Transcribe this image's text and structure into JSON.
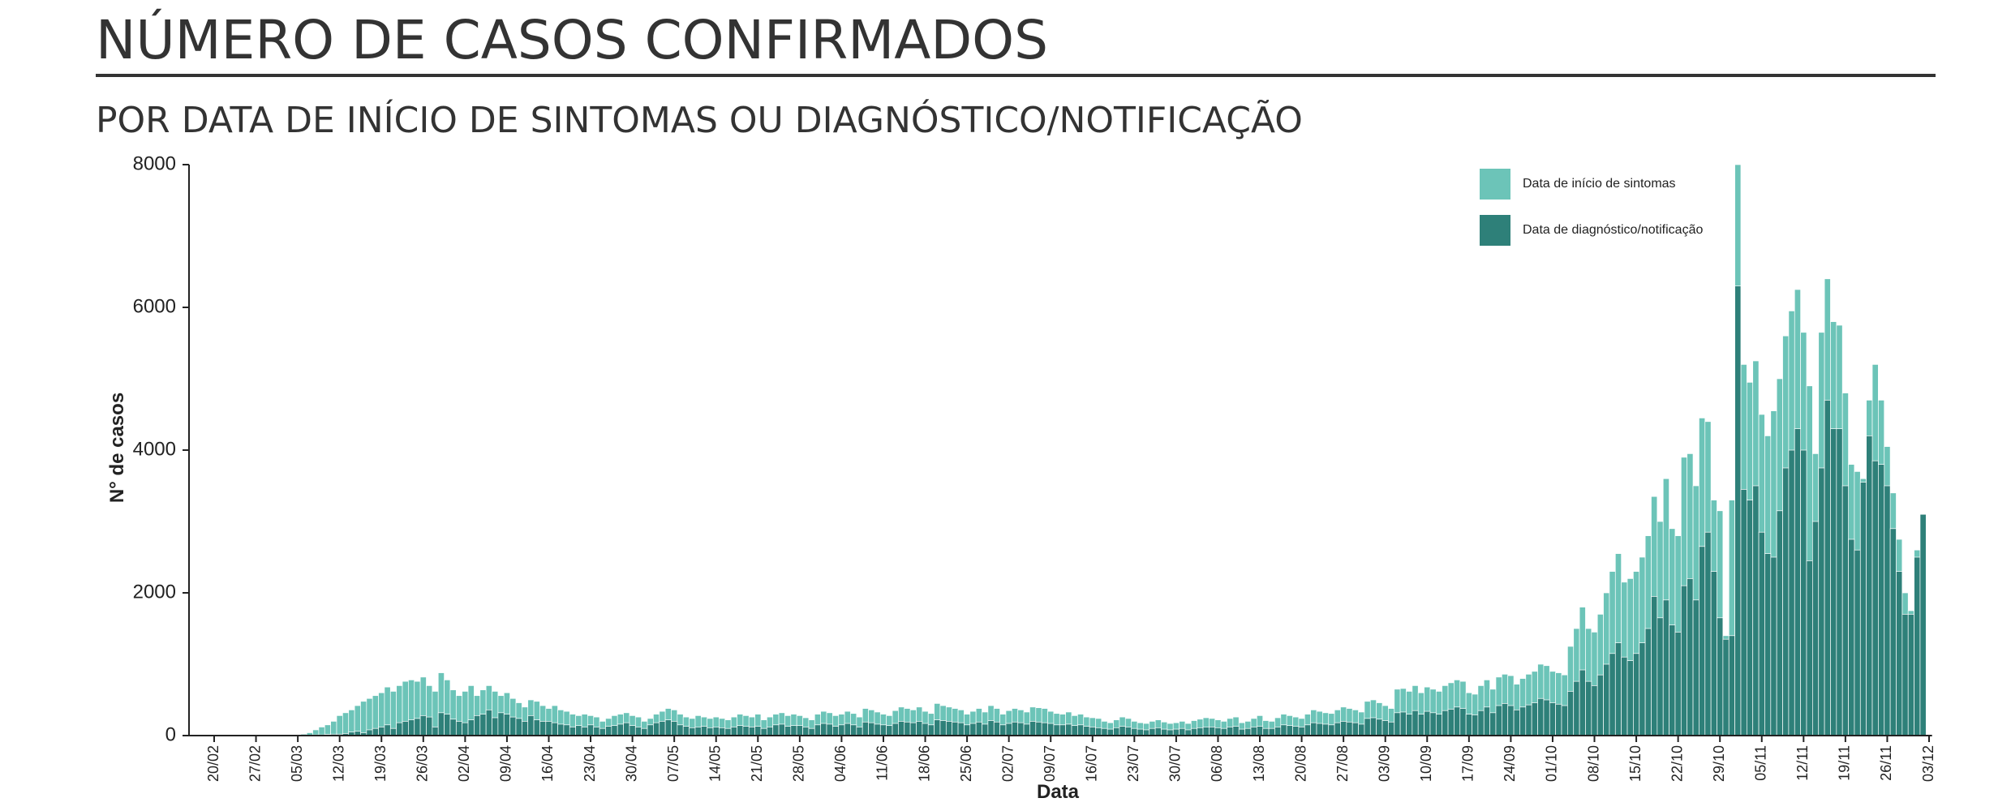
{
  "chart_data": {
    "type": "bar",
    "overlay": true,
    "title": "NÚMERO DE CASOS CONFIRMADOS",
    "subtitle": "POR DATA DE INÍCIO DE SINTOMAS OU DIAGNÓSTICO/NOTIFICAÇÃO",
    "x_label": "Data",
    "y_label": "N° de casos",
    "ylim": [
      0,
      8000
    ],
    "yticks": [
      0,
      2000,
      4000,
      6000,
      8000
    ],
    "grid": false,
    "legend": "top-right",
    "categories": [
      "20/02",
      null,
      null,
      null,
      null,
      null,
      null,
      "27/02",
      null,
      null,
      null,
      null,
      null,
      null,
      "05/03",
      null,
      null,
      null,
      null,
      null,
      null,
      "12/03",
      null,
      null,
      null,
      null,
      null,
      null,
      "19/03",
      null,
      null,
      null,
      null,
      null,
      null,
      "26/03",
      null,
      null,
      null,
      null,
      null,
      null,
      "02/04",
      null,
      null,
      null,
      null,
      null,
      null,
      "09/04",
      null,
      null,
      null,
      null,
      null,
      null,
      "16/04",
      null,
      null,
      null,
      null,
      null,
      null,
      "23/04",
      null,
      null,
      null,
      null,
      null,
      null,
      "30/04",
      null,
      null,
      null,
      null,
      null,
      null,
      "07/05",
      null,
      null,
      null,
      null,
      null,
      null,
      "14/05",
      null,
      null,
      null,
      null,
      null,
      null,
      "21/05",
      null,
      null,
      null,
      null,
      null,
      null,
      "28/05",
      null,
      null,
      null,
      null,
      null,
      null,
      "04/06",
      null,
      null,
      null,
      null,
      null,
      null,
      "11/06",
      null,
      null,
      null,
      null,
      null,
      null,
      "18/06",
      null,
      null,
      null,
      null,
      null,
      null,
      "25/06",
      null,
      null,
      null,
      null,
      null,
      null,
      "02/07",
      null,
      null,
      null,
      null,
      null,
      null,
      "09/07",
      null,
      null,
      null,
      null,
      null,
      null,
      "16/07",
      null,
      null,
      null,
      null,
      null,
      null,
      "23/07",
      null,
      null,
      null,
      null,
      null,
      null,
      "30/07",
      null,
      null,
      null,
      null,
      null,
      null,
      "06/08",
      null,
      null,
      null,
      null,
      null,
      null,
      "13/08",
      null,
      null,
      null,
      null,
      null,
      null,
      "20/08",
      null,
      null,
      null,
      null,
      null,
      null,
      "27/08",
      null,
      null,
      null,
      null,
      null,
      null,
      "03/09",
      null,
      null,
      null,
      null,
      null,
      null,
      "10/09",
      null,
      null,
      null,
      null,
      null,
      null,
      "17/09",
      null,
      null,
      null,
      null,
      null,
      null,
      "24/09",
      null,
      null,
      null,
      null,
      null,
      null,
      "01/10",
      null,
      null,
      null,
      null,
      null,
      null,
      "08/10",
      null,
      null,
      null,
      null,
      null,
      null,
      "15/10",
      null,
      null,
      null,
      null,
      null,
      null,
      "22/10",
      null,
      null,
      null,
      null,
      null,
      null,
      "29/10",
      null,
      null,
      null,
      null,
      null,
      null,
      "05/11",
      null,
      null,
      null,
      null,
      null,
      null,
      "12/11",
      null,
      null,
      null,
      null,
      null,
      null,
      "19/11",
      null,
      null,
      null,
      null,
      null,
      null,
      "26/11",
      null,
      null,
      null,
      null,
      null,
      null,
      "03/12"
    ],
    "series": [
      {
        "name": "Data de início de sintomas",
        "color": "#6cc4b8",
        "values": [
          0,
          0,
          0,
          0,
          0,
          0,
          0,
          0,
          0,
          0,
          0,
          0,
          2,
          4,
          10,
          20,
          40,
          80,
          120,
          150,
          200,
          280,
          320,
          360,
          420,
          480,
          520,
          560,
          600,
          680,
          620,
          700,
          760,
          780,
          760,
          820,
          700,
          620,
          880,
          780,
          640,
          560,
          620,
          700,
          560,
          640,
          700,
          620,
          560,
          600,
          520,
          460,
          400,
          500,
          480,
          420,
          380,
          420,
          360,
          340,
          300,
          280,
          300,
          280,
          260,
          200,
          240,
          280,
          300,
          320,
          280,
          260,
          200,
          240,
          300,
          340,
          380,
          360,
          300,
          260,
          240,
          280,
          260,
          240,
          260,
          240,
          220,
          260,
          300,
          280,
          260,
          300,
          220,
          260,
          300,
          320,
          280,
          300,
          280,
          250,
          220,
          300,
          340,
          320,
          280,
          300,
          340,
          310,
          260,
          380,
          360,
          330,
          300,
          280,
          350,
          400,
          380,
          360,
          400,
          340,
          310,
          450,
          420,
          400,
          380,
          360,
          300,
          340,
          380,
          330,
          420,
          380,
          300,
          350,
          380,
          360,
          330,
          400,
          390,
          380,
          340,
          310,
          300,
          330,
          280,
          300,
          260,
          250,
          240,
          200,
          180,
          220,
          260,
          240,
          200,
          180,
          170,
          200,
          220,
          190,
          170,
          180,
          200,
          170,
          210,
          230,
          250,
          240,
          220,
          200,
          240,
          260,
          180,
          200,
          240,
          280,
          210,
          200,
          250,
          300,
          280,
          260,
          240,
          300,
          360,
          340,
          320,
          310,
          360,
          400,
          380,
          360,
          330,
          480,
          500,
          460,
          420,
          380,
          650,
          660,
          620,
          700,
          600,
          680,
          650,
          620,
          700,
          740,
          780,
          760,
          600,
          580,
          700,
          780,
          650,
          820,
          860,
          840,
          720,
          800,
          860,
          900,
          1000,
          980,
          900,
          880,
          850,
          1250,
          1500,
          1800,
          1500,
          1450,
          1700,
          2000,
          2300,
          2550,
          2150,
          2200,
          2300,
          2500,
          2800,
          3350,
          3000,
          3600,
          2900,
          2800,
          3900,
          3950,
          3500,
          4450,
          4400,
          3300,
          3150,
          1400,
          3300,
          8000,
          5200,
          4950,
          5250,
          4500,
          4200,
          4550,
          5000,
          5600,
          5950,
          6250,
          5650,
          4900,
          3950,
          5650,
          6400,
          5800,
          5750,
          4800,
          3800,
          3700,
          3600,
          4700,
          5200,
          4700,
          4050,
          3400,
          2750,
          2000,
          1750,
          2600,
          3100,
          0
        ]
      },
      {
        "name": "Data de diagnóstico/notificação",
        "color": "#2e8079",
        "values": [
          0,
          0,
          0,
          0,
          0,
          0,
          0,
          0,
          0,
          0,
          0,
          0,
          2,
          2,
          2,
          5,
          5,
          10,
          10,
          15,
          20,
          20,
          30,
          50,
          60,
          40,
          80,
          100,
          120,
          150,
          100,
          180,
          200,
          220,
          240,
          280,
          260,
          120,
          320,
          300,
          230,
          200,
          180,
          220,
          280,
          300,
          360,
          250,
          320,
          300,
          260,
          240,
          200,
          280,
          220,
          200,
          200,
          180,
          160,
          150,
          120,
          140,
          120,
          150,
          120,
          100,
          130,
          140,
          160,
          180,
          140,
          120,
          100,
          150,
          180,
          200,
          220,
          200,
          150,
          130,
          110,
          120,
          130,
          110,
          120,
          110,
          100,
          120,
          140,
          130,
          120,
          130,
          100,
          120,
          150,
          160,
          130,
          140,
          140,
          120,
          100,
          150,
          170,
          160,
          130,
          150,
          170,
          150,
          120,
          190,
          180,
          160,
          150,
          140,
          170,
          200,
          190,
          180,
          200,
          170,
          150,
          220,
          210,
          200,
          190,
          180,
          150,
          170,
          190,
          160,
          210,
          190,
          150,
          170,
          190,
          180,
          160,
          200,
          190,
          180,
          170,
          150,
          150,
          160,
          140,
          150,
          130,
          120,
          110,
          100,
          90,
          110,
          130,
          120,
          100,
          90,
          80,
          100,
          110,
          90,
          80,
          90,
          100,
          80,
          100,
          110,
          120,
          120,
          110,
          100,
          120,
          130,
          90,
          100,
          120,
          130,
          100,
          100,
          120,
          150,
          140,
          130,
          120,
          150,
          180,
          170,
          160,
          150,
          180,
          200,
          190,
          180,
          160,
          240,
          250,
          230,
          210,
          190,
          320,
          330,
          300,
          350,
          300,
          340,
          320,
          300,
          350,
          370,
          400,
          380,
          300,
          290,
          350,
          400,
          320,
          420,
          450,
          420,
          360,
          400,
          430,
          460,
          520,
          500,
          460,
          440,
          420,
          620,
          760,
          920,
          760,
          700,
          850,
          1000,
          1150,
          1300,
          1100,
          1050,
          1150,
          1300,
          1500,
          1950,
          1650,
          1900,
          1550,
          1450,
          2100,
          2200,
          1900,
          2650,
          2850,
          2300,
          1650,
          1350,
          1400,
          6300,
          3450,
          3300,
          3500,
          2850,
          2550,
          2500,
          3150,
          3750,
          4000,
          4300,
          4000,
          2450,
          3000,
          3750,
          4700,
          4300,
          4300,
          3500,
          2750,
          2600,
          3550,
          4200,
          3850,
          3800,
          3500,
          2900,
          2300,
          1700,
          1700,
          2500,
          3100,
          0
        ]
      }
    ]
  }
}
